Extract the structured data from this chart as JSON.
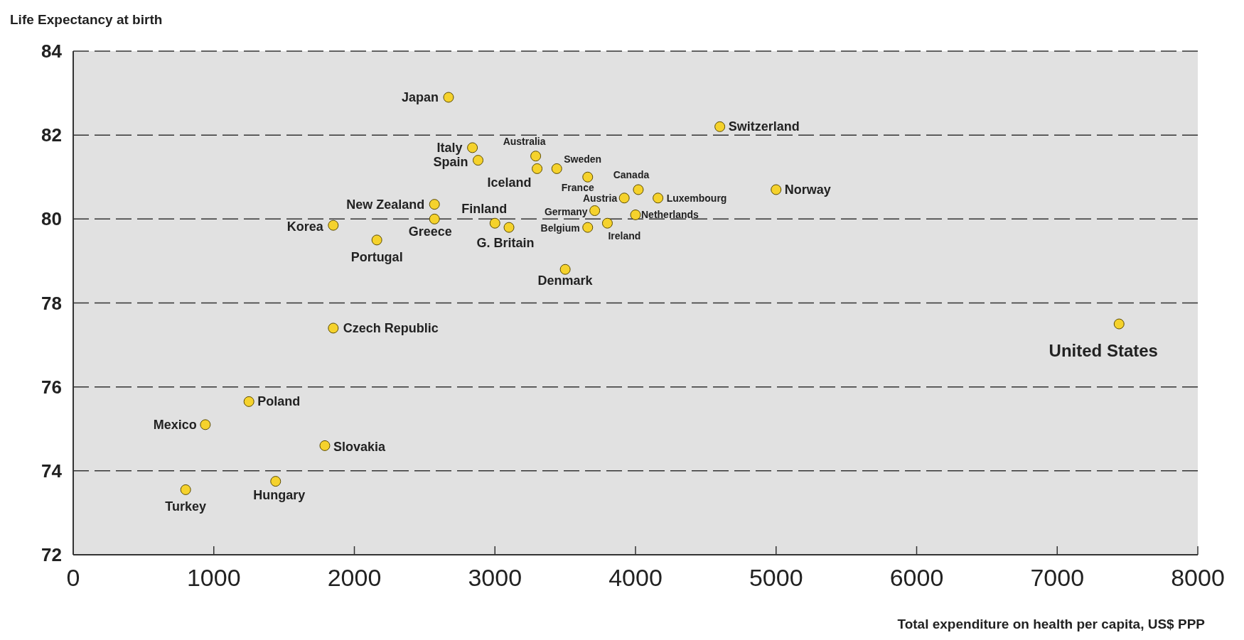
{
  "chart_data": {
    "type": "scatter",
    "ylabel": "Life Expectancy at birth",
    "xlabel": "Total expenditure on health per capita, US$ PPP",
    "xlim": [
      0,
      8000
    ],
    "xticks": [
      0,
      1000,
      2000,
      3000,
      4000,
      5000,
      6000,
      7000,
      8000
    ],
    "ylim": [
      72,
      84
    ],
    "yticks": [
      72,
      74,
      76,
      78,
      80,
      82,
      84
    ],
    "grid": "y",
    "marker": "circle",
    "series": [
      {
        "color": "#f5d22c",
        "x": [
          2670,
          4600,
          2840,
          2880,
          3290,
          3300,
          3440,
          3660,
          4020,
          3920,
          4160,
          5000,
          2570,
          2570,
          3710,
          4000,
          3000,
          3100,
          3660,
          3800,
          1850,
          2160,
          3500,
          1850,
          7440,
          1250,
          940,
          1790,
          1440,
          800
        ],
        "values": [
          82.9,
          82.2,
          81.7,
          81.4,
          81.5,
          81.2,
          81.2,
          81.0,
          80.7,
          80.5,
          80.5,
          80.7,
          80.35,
          80.0,
          80.2,
          80.1,
          79.9,
          79.8,
          79.8,
          79.9,
          79.85,
          79.5,
          78.8,
          77.4,
          77.5,
          75.65,
          75.1,
          74.6,
          73.75,
          73.55
        ]
      }
    ],
    "annotations": [
      {
        "text": "Japan",
        "x": 2670,
        "y": 82.9
      },
      {
        "text": "Switzerland",
        "x": 4600,
        "y": 82.2
      },
      {
        "text": "Italy",
        "x": 2840,
        "y": 81.7
      },
      {
        "text": "Spain",
        "x": 2880,
        "y": 81.4
      },
      {
        "text": "Australia",
        "x": 3290,
        "y": 81.5
      },
      {
        "text": "Iceland",
        "x": 3300,
        "y": 81.2
      },
      {
        "text": "Sweden",
        "x": 3440,
        "y": 81.2
      },
      {
        "text": "France",
        "x": 3660,
        "y": 81.0
      },
      {
        "text": "Canada",
        "x": 4020,
        "y": 80.7
      },
      {
        "text": "Austria",
        "x": 3920,
        "y": 80.5
      },
      {
        "text": "Luxembourg",
        "x": 4160,
        "y": 80.5
      },
      {
        "text": "Norway",
        "x": 5000,
        "y": 80.7
      },
      {
        "text": "New Zealand",
        "x": 2570,
        "y": 80.35
      },
      {
        "text": "Greece",
        "x": 2570,
        "y": 80.0
      },
      {
        "text": "Germany",
        "x": 3710,
        "y": 80.2
      },
      {
        "text": "Netherlands",
        "x": 4000,
        "y": 80.1
      },
      {
        "text": "Finland",
        "x": 3000,
        "y": 79.9
      },
      {
        "text": "G. Britain",
        "x": 3100,
        "y": 79.8
      },
      {
        "text": "Belgium",
        "x": 3660,
        "y": 79.8
      },
      {
        "text": "Ireland",
        "x": 3800,
        "y": 79.9
      },
      {
        "text": "Korea",
        "x": 1850,
        "y": 79.85
      },
      {
        "text": "Portugal",
        "x": 2160,
        "y": 79.5
      },
      {
        "text": "Denmark",
        "x": 3500,
        "y": 78.8
      },
      {
        "text": "Czech Republic",
        "x": 1850,
        "y": 77.4
      },
      {
        "text": "United States",
        "x": 7440,
        "y": 77.5
      },
      {
        "text": "Poland",
        "x": 1250,
        "y": 75.65
      },
      {
        "text": "Mexico",
        "x": 940,
        "y": 75.1
      },
      {
        "text": "Slovakia",
        "x": 1790,
        "y": 74.6
      },
      {
        "text": "Hungary",
        "x": 1440,
        "y": 73.75
      },
      {
        "text": "Turkey",
        "x": 800,
        "y": 73.55
      }
    ]
  }
}
